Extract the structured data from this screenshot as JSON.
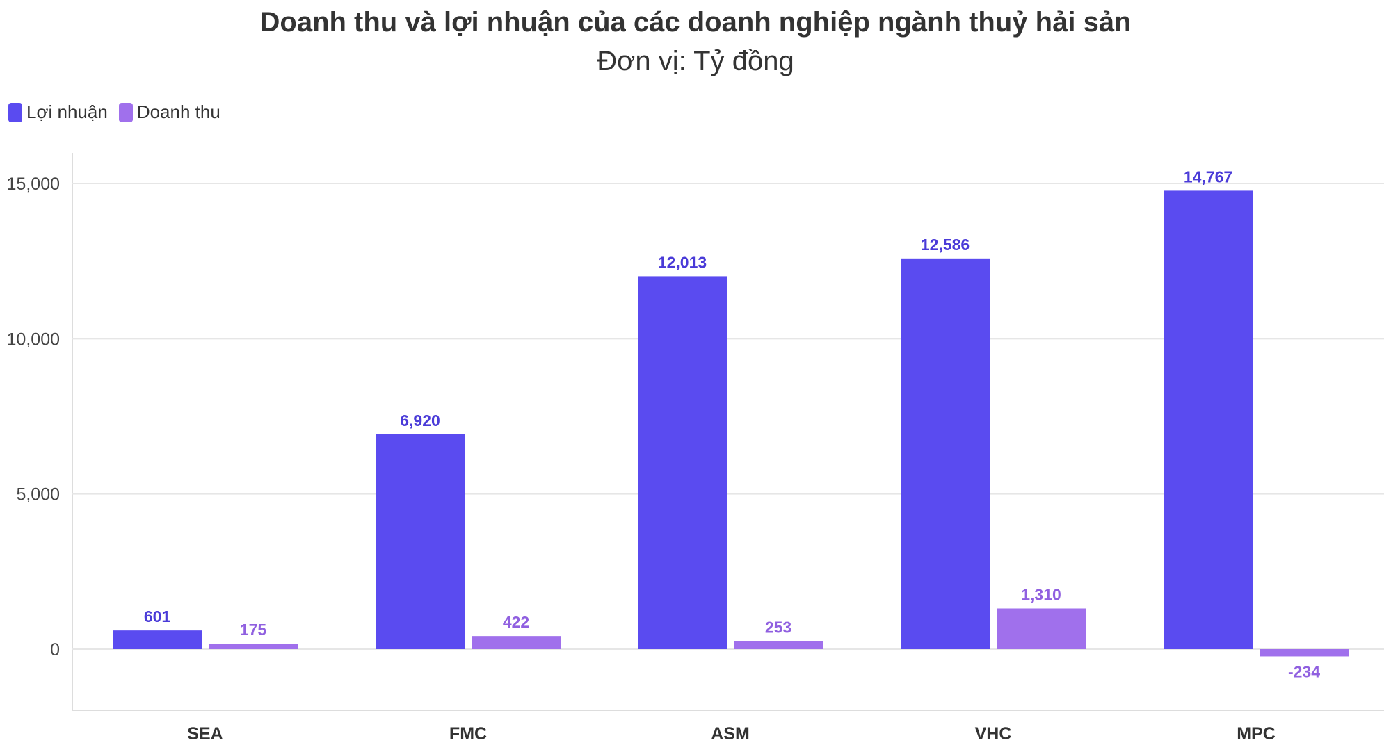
{
  "chart_data": {
    "type": "bar",
    "title": "Doanh thu và lợi nhuận của các doanh nghiệp ngành thuỷ hải sản",
    "subtitle": "Đơn vị: Tỷ đồng",
    "categories": [
      "SEA",
      "FMC",
      "ASM",
      "VHC",
      "MPC"
    ],
    "series": [
      {
        "name": "Lợi nhuận",
        "color": "#5a4bf0",
        "label_color": "#4a3bd8",
        "values": [
          601,
          6920,
          12013,
          12586,
          14767
        ],
        "labels": [
          "601",
          "6,920",
          "12,013",
          "12,586",
          "14,767"
        ]
      },
      {
        "name": "Doanh thu",
        "color": "#a070ec",
        "label_color": "#9060e0",
        "values": [
          175,
          422,
          253,
          1310,
          -234
        ],
        "labels": [
          "175",
          "422",
          "253",
          "1,310",
          "-234"
        ]
      }
    ],
    "y_ticks": [
      0,
      5000,
      10000,
      15000
    ],
    "y_tick_labels": [
      "0",
      "5,000",
      "10,000",
      "15,000"
    ],
    "ylim": [
      -2000,
      16000
    ],
    "grid": true,
    "legend_position": "top-left"
  }
}
